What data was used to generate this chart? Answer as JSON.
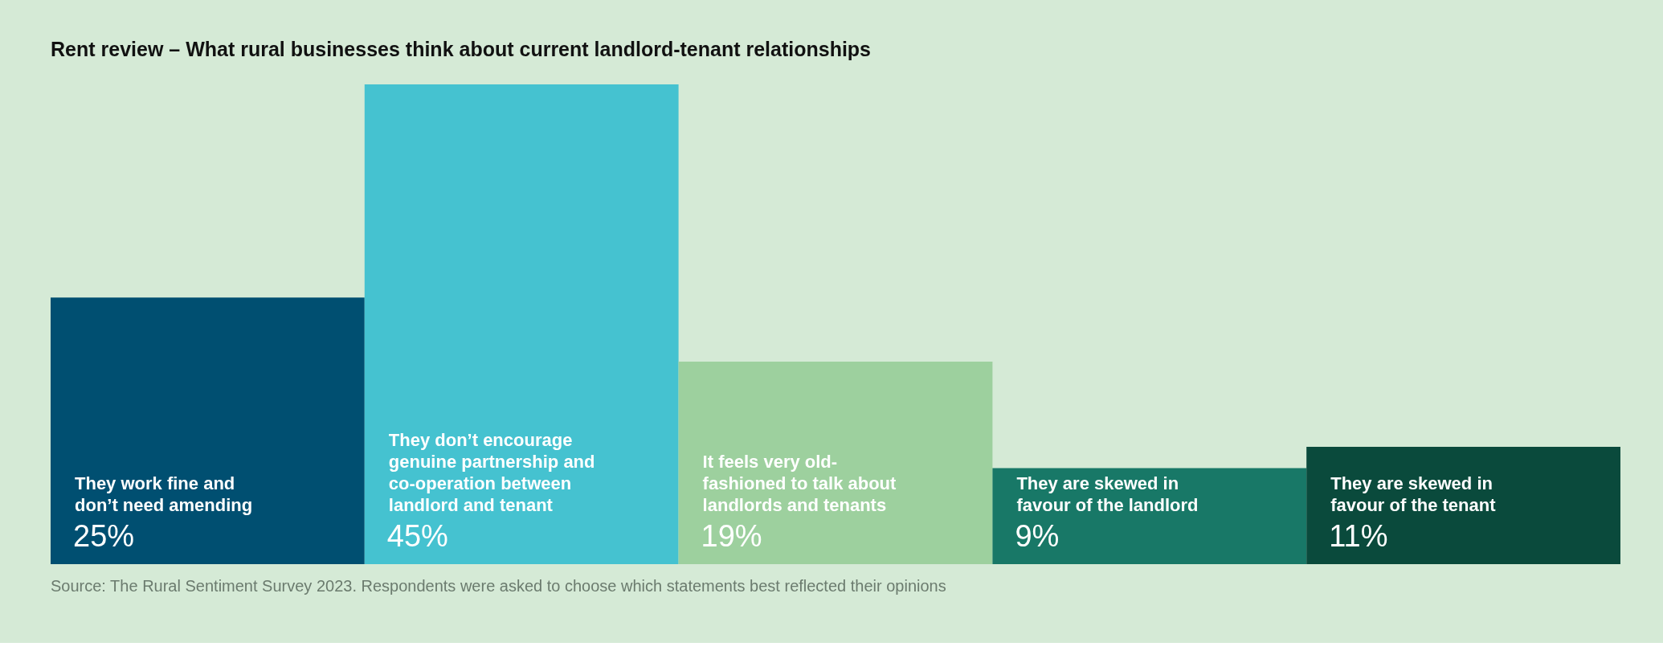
{
  "chart_data": {
    "type": "bar",
    "title": "Rent review – What rural businesses think about current landlord-tenant relationships",
    "categories": [
      "They work fine and don’t need amending",
      "They don’t encourage genuine partnership and co-operation between landlord and tenant",
      "It feels very old-fashioned to talk about landlords and tenants",
      "They are skewed in favour of the landlord",
      "They are skewed in favour of the tenant"
    ],
    "values": [
      25,
      45,
      19,
      9,
      11
    ],
    "value_labels": [
      "25%",
      "45%",
      "19%",
      "9%",
      "11%"
    ],
    "colors": [
      "#004f71",
      "#45c2d0",
      "#9dd09e",
      "#187867",
      "#0a4a3c"
    ],
    "annotations": [
      "Source: The Rural Sentiment Survey 2023. Respondents were asked to choose which statements best reflected their opinions"
    ]
  }
}
